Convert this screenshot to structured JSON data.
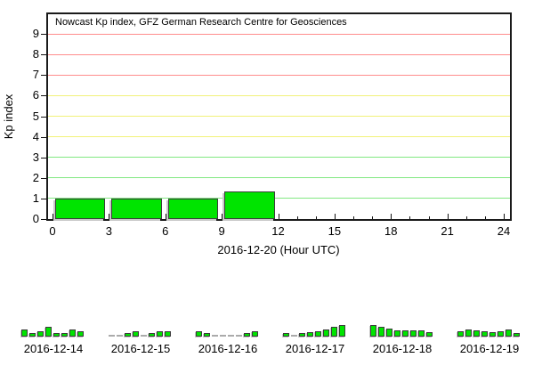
{
  "page": {
    "app": "GFZ Nowcast Kp index plot",
    "date_shown": "2016-12-20"
  },
  "colors": {
    "bar_fill": "#00e400",
    "bar_border": "#3c3c3c",
    "bar_shadow": "#c9c9c9",
    "grid_green": "#82e882",
    "grid_yellow": "#f2f27a",
    "grid_red": "#ff8d8d",
    "zero_dash": "#ababab",
    "frame": "#1a1a1a",
    "tick": "#111111",
    "background": "#ffffff"
  },
  "chart_data": [
    {
      "id": "nowcast-main",
      "type": "bar",
      "title": "Nowcast Kp index, GFZ German Research Centre for Geosciences",
      "xlabel": "2016-12-20 (Hour UTC)",
      "ylabel": "Kp index",
      "x_ticks": [
        0,
        3,
        6,
        9,
        12,
        15,
        18,
        21,
        24
      ],
      "y_ticks": [
        0,
        1,
        2,
        3,
        4,
        5,
        6,
        7,
        8,
        9
      ],
      "xlim": [
        0,
        24
      ],
      "ylim": [
        0,
        10
      ],
      "grid": "horizontal",
      "legend": "none",
      "grid_bands": {
        "green": [
          1,
          2,
          3
        ],
        "yellow": [
          4,
          5,
          6
        ],
        "red": [
          7,
          8,
          9
        ]
      },
      "bars": [
        {
          "start_hour": 0,
          "end_hour": 3,
          "kp": 1.0
        },
        {
          "start_hour": 3,
          "end_hour": 6,
          "kp": 1.0
        },
        {
          "start_hour": 6,
          "end_hour": 9,
          "kp": 1.0
        },
        {
          "start_hour": 9,
          "end_hour": 12,
          "kp": 1.33
        }
      ]
    },
    {
      "id": "mini-2016-12-14",
      "type": "bar",
      "label": "2016-12-14",
      "interval_hours": 3,
      "values": [
        2.0,
        0.7,
        1.3,
        2.7,
        0.7,
        0.7,
        2.0,
        1.3
      ]
    },
    {
      "id": "mini-2016-12-15",
      "type": "bar",
      "label": "2016-12-15",
      "interval_hours": 3,
      "values": [
        0,
        0,
        0.7,
        1.3,
        0,
        0.7,
        1.3,
        1.3
      ]
    },
    {
      "id": "mini-2016-12-16",
      "type": "bar",
      "label": "2016-12-16",
      "interval_hours": 3,
      "values": [
        1.3,
        0.7,
        0,
        0,
        0,
        0,
        0.7,
        1.3
      ]
    },
    {
      "id": "mini-2016-12-17",
      "type": "bar",
      "label": "2016-12-17",
      "interval_hours": 3,
      "values": [
        0.7,
        0,
        0.7,
        1.0,
        1.3,
        2.0,
        2.7,
        3.3
      ]
    },
    {
      "id": "mini-2016-12-18",
      "type": "bar",
      "label": "2016-12-18",
      "interval_hours": 3,
      "values": [
        3.3,
        2.7,
        2.3,
        1.7,
        1.7,
        1.7,
        1.7,
        1.0
      ]
    },
    {
      "id": "mini-2016-12-19",
      "type": "bar",
      "label": "2016-12-19",
      "interval_hours": 3,
      "values": [
        1.3,
        2.0,
        1.7,
        1.3,
        1.0,
        1.3,
        2.0,
        0.7
      ]
    }
  ]
}
